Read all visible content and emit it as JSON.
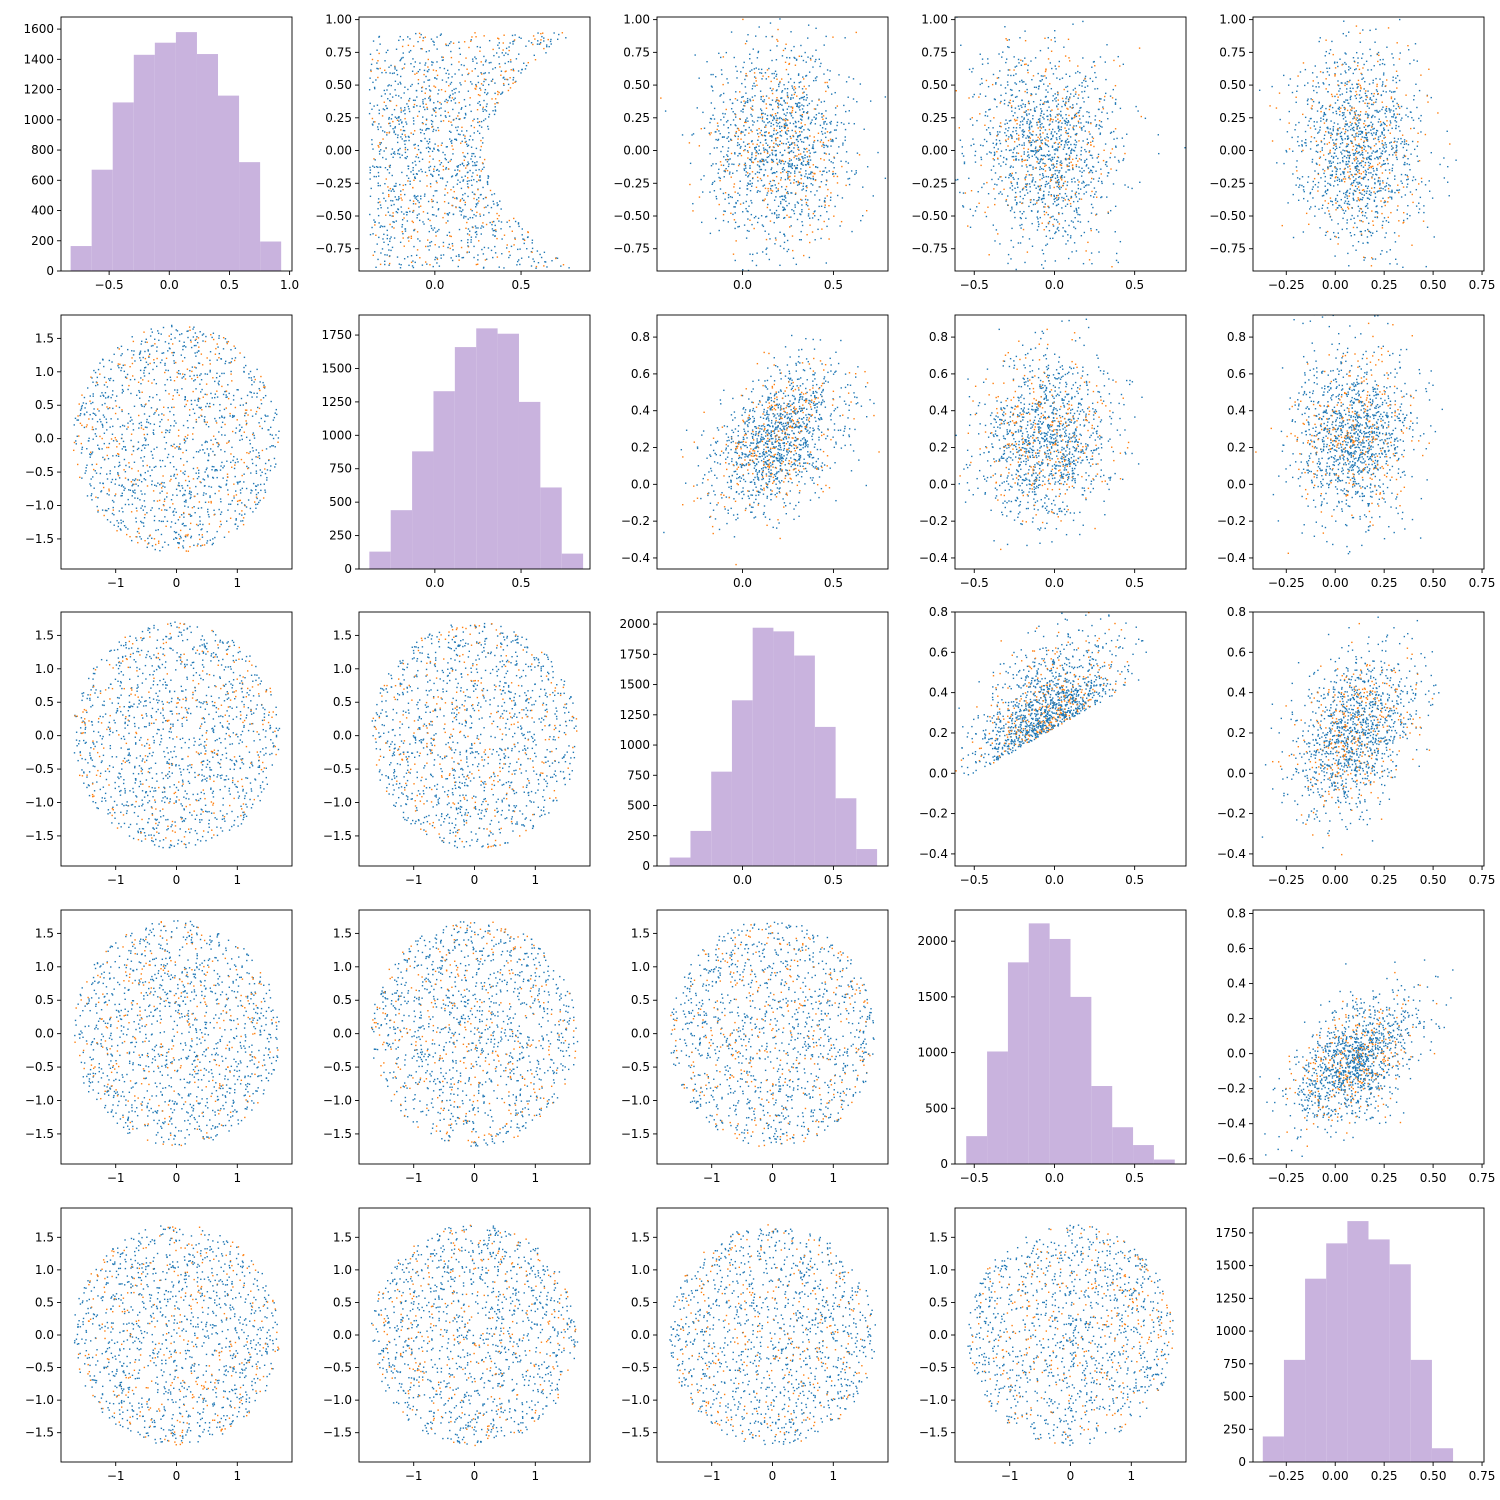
{
  "figure": {
    "type": "pair-plot",
    "colors": {
      "hist": "#c9b3de",
      "scatter_primary": "#1f77b4",
      "scatter_secondary": "#ff7f0e"
    }
  },
  "chart_data": [
    {
      "row": 0,
      "col": 0,
      "type": "bar",
      "xlim": [
        -0.9,
        1.02
      ],
      "ylim": [
        0,
        1680
      ],
      "xticks": [
        -0.5,
        0.0,
        0.5,
        1.0
      ],
      "xtick_labels": [
        "−0.5",
        "0.0",
        "0.5",
        "1.0"
      ],
      "yticks": [
        0,
        200,
        400,
        600,
        800,
        1000,
        1200,
        1400,
        1600
      ],
      "ytick_labels": [
        "0",
        "200",
        "400",
        "600",
        "800",
        "1000",
        "1200",
        "1400",
        "1600"
      ],
      "bin_edges": [
        -0.82,
        -0.645,
        -0.47,
        -0.295,
        -0.12,
        0.055,
        0.23,
        0.405,
        0.58,
        0.755,
        0.93
      ],
      "values": [
        165,
        670,
        1115,
        1430,
        1510,
        1580,
        1435,
        1160,
        720,
        195
      ]
    },
    {
      "row": 0,
      "col": 1,
      "type": "scatter",
      "shape": "parabola",
      "cx": 0.22,
      "cy": 0.0,
      "sx": 0.25,
      "sy": 0.45,
      "xlim": [
        -0.44,
        0.9
      ],
      "ylim": [
        -0.92,
        1.02
      ],
      "xticks": [
        0.0,
        0.5
      ],
      "xtick_labels": [
        "0.0",
        "0.5"
      ],
      "yticks": [
        -0.75,
        -0.5,
        -0.25,
        0.0,
        0.25,
        0.5,
        0.75,
        1.0
      ],
      "ytick_labels": [
        "−0.75",
        "−0.50",
        "−0.25",
        "0.00",
        "0.25",
        "0.50",
        "0.75",
        "1.00"
      ]
    },
    {
      "row": 0,
      "col": 2,
      "type": "scatter",
      "shape": "blob",
      "cx": 0.2,
      "cy": 0.02,
      "sx": 0.2,
      "sy": 0.38,
      "xlim": [
        -0.47,
        0.8
      ],
      "ylim": [
        -0.92,
        1.02
      ],
      "xticks": [
        0.0,
        0.5
      ],
      "xtick_labels": [
        "0.0",
        "0.5"
      ],
      "yticks": [
        -0.75,
        -0.5,
        -0.25,
        0.0,
        0.25,
        0.5,
        0.75,
        1.0
      ],
      "ytick_labels": [
        "−0.75",
        "−0.50",
        "−0.25",
        "0.00",
        "0.25",
        "0.50",
        "0.75",
        "1.00"
      ]
    },
    {
      "row": 0,
      "col": 3,
      "type": "scatter",
      "shape": "blob",
      "cx": -0.05,
      "cy": 0.02,
      "sx": 0.22,
      "sy": 0.38,
      "xlim": [
        -0.62,
        0.82
      ],
      "ylim": [
        -0.92,
        1.02
      ],
      "xticks": [
        -0.5,
        0.0,
        0.5
      ],
      "xtick_labels": [
        "−0.5",
        "0.0",
        "0.5"
      ],
      "yticks": [
        -0.75,
        -0.5,
        -0.25,
        0.0,
        0.25,
        0.5,
        0.75,
        1.0
      ],
      "ytick_labels": [
        "−0.75",
        "−0.50",
        "−0.25",
        "0.00",
        "0.25",
        "0.50",
        "0.75",
        "1.00"
      ]
    },
    {
      "row": 0,
      "col": 4,
      "type": "scatter",
      "shape": "blob",
      "cx": 0.12,
      "cy": 0.05,
      "sx": 0.16,
      "sy": 0.38,
      "xlim": [
        -0.42,
        0.76
      ],
      "ylim": [
        -0.92,
        1.02
      ],
      "xticks": [
        -0.25,
        0.0,
        0.25,
        0.5,
        0.75
      ],
      "xtick_labels": [
        "−0.25",
        "0.00",
        "0.25",
        "0.50",
        "0.75"
      ],
      "yticks": [
        -0.75,
        -0.5,
        -0.25,
        0.0,
        0.25,
        0.5,
        0.75,
        1.0
      ],
      "ytick_labels": [
        "−0.75",
        "−0.50",
        "−0.25",
        "0.00",
        "0.25",
        "0.50",
        "0.75",
        "1.00"
      ]
    },
    {
      "row": 1,
      "col": 0,
      "type": "scatter",
      "shape": "disc",
      "cx": 0.0,
      "cy": 0.0,
      "r": 1.7,
      "xlim": [
        -1.9,
        1.9
      ],
      "ylim": [
        -1.95,
        1.85
      ],
      "xticks": [
        -1,
        0,
        1
      ],
      "xtick_labels": [
        "−1",
        "0",
        "1"
      ],
      "yticks": [
        -1.5,
        -1.0,
        -0.5,
        0.0,
        0.5,
        1.0,
        1.5
      ],
      "ytick_labels": [
        "−1.5",
        "−1.0",
        "−0.5",
        "0.0",
        "0.5",
        "1.0",
        "1.5"
      ]
    },
    {
      "row": 1,
      "col": 1,
      "type": "bar",
      "xlim": [
        -0.44,
        0.9
      ],
      "ylim": [
        0,
        1900
      ],
      "xticks": [
        0.0,
        0.5
      ],
      "xtick_labels": [
        "0.0",
        "0.5"
      ],
      "yticks": [
        0,
        250,
        500,
        750,
        1000,
        1250,
        1500,
        1750
      ],
      "ytick_labels": [
        "0",
        "250",
        "500",
        "750",
        "1000",
        "1250",
        "1500",
        "1750"
      ],
      "bin_edges": [
        -0.38,
        -0.256,
        -0.132,
        -0.008,
        0.116,
        0.24,
        0.364,
        0.488,
        0.612,
        0.736,
        0.86
      ],
      "values": [
        130,
        440,
        880,
        1330,
        1660,
        1800,
        1760,
        1250,
        610,
        115
      ]
    },
    {
      "row": 1,
      "col": 2,
      "type": "scatter",
      "shape": "slope",
      "cx": 0.2,
      "cy": 0.25,
      "sx": 0.18,
      "sy": 0.2,
      "rho": 0.45,
      "xlim": [
        -0.47,
        0.8
      ],
      "ylim": [
        -0.46,
        0.92
      ],
      "xticks": [
        0.0,
        0.5
      ],
      "xtick_labels": [
        "0.0",
        "0.5"
      ],
      "yticks": [
        -0.4,
        -0.2,
        0.0,
        0.2,
        0.4,
        0.6,
        0.8
      ],
      "ytick_labels": [
        "−0.4",
        "−0.2",
        "0.0",
        "0.2",
        "0.4",
        "0.6",
        "0.8"
      ]
    },
    {
      "row": 1,
      "col": 3,
      "type": "scatter",
      "shape": "blob",
      "cx": -0.05,
      "cy": 0.25,
      "sx": 0.2,
      "sy": 0.22,
      "xlim": [
        -0.62,
        0.82
      ],
      "ylim": [
        -0.46,
        0.92
      ],
      "xticks": [
        -0.5,
        0.0,
        0.5
      ],
      "xtick_labels": [
        "−0.5",
        "0.0",
        "0.5"
      ],
      "yticks": [
        -0.4,
        -0.2,
        0.0,
        0.2,
        0.4,
        0.6,
        0.8
      ],
      "ytick_labels": [
        "−0.4",
        "−0.2",
        "0.0",
        "0.2",
        "0.4",
        "0.6",
        "0.8"
      ]
    },
    {
      "row": 1,
      "col": 4,
      "type": "scatter",
      "shape": "blob",
      "cx": 0.1,
      "cy": 0.27,
      "sx": 0.15,
      "sy": 0.22,
      "xlim": [
        -0.42,
        0.76
      ],
      "ylim": [
        -0.46,
        0.92
      ],
      "xticks": [
        -0.25,
        0.0,
        0.25,
        0.5,
        0.75
      ],
      "xtick_labels": [
        "−0.25",
        "0.00",
        "0.25",
        "0.50",
        "0.75"
      ],
      "yticks": [
        -0.4,
        -0.2,
        0.0,
        0.2,
        0.4,
        0.6,
        0.8
      ],
      "ytick_labels": [
        "−0.4",
        "−0.2",
        "0.0",
        "0.2",
        "0.4",
        "0.6",
        "0.8"
      ]
    },
    {
      "row": 2,
      "col": 0,
      "type": "scatter",
      "shape": "disc",
      "cx": 0.0,
      "cy": 0.0,
      "r": 1.7,
      "xlim": [
        -1.9,
        1.9
      ],
      "ylim": [
        -1.95,
        1.85
      ],
      "xticks": [
        -1,
        0,
        1
      ],
      "xtick_labels": [
        "−1",
        "0",
        "1"
      ],
      "yticks": [
        -1.5,
        -1.0,
        -0.5,
        0.0,
        0.5,
        1.0,
        1.5
      ],
      "ytick_labels": [
        "−1.5",
        "−1.0",
        "−0.5",
        "0.0",
        "0.5",
        "1.0",
        "1.5"
      ]
    },
    {
      "row": 2,
      "col": 1,
      "type": "scatter",
      "shape": "disc",
      "cx": 0.0,
      "cy": 0.0,
      "r": 1.7,
      "xlim": [
        -1.9,
        1.9
      ],
      "ylim": [
        -1.95,
        1.85
      ],
      "xticks": [
        -1,
        0,
        1
      ],
      "xtick_labels": [
        "−1",
        "0",
        "1"
      ],
      "yticks": [
        -1.5,
        -1.0,
        -0.5,
        0.0,
        0.5,
        1.0,
        1.5
      ],
      "ytick_labels": [
        "−1.5",
        "−1.0",
        "−0.5",
        "0.0",
        "0.5",
        "1.0",
        "1.5"
      ]
    },
    {
      "row": 2,
      "col": 2,
      "type": "bar",
      "xlim": [
        -0.47,
        0.8
      ],
      "ylim": [
        0,
        2100
      ],
      "xticks": [
        0.0,
        0.5
      ],
      "xtick_labels": [
        "0.0",
        "0.5"
      ],
      "yticks": [
        0,
        250,
        500,
        750,
        1000,
        1250,
        1500,
        1750,
        2000
      ],
      "ytick_labels": [
        "0",
        "250",
        "500",
        "750",
        "1000",
        "1250",
        "1500",
        "1750",
        "2000"
      ],
      "bin_edges": [
        -0.4,
        -0.286,
        -0.172,
        -0.058,
        0.056,
        0.17,
        0.284,
        0.398,
        0.512,
        0.626,
        0.74
      ],
      "values": [
        70,
        290,
        780,
        1370,
        1970,
        1940,
        1740,
        1150,
        560,
        140
      ]
    },
    {
      "row": 2,
      "col": 3,
      "type": "scatter",
      "shape": "wedge",
      "cx": -0.05,
      "cy": 0.2,
      "sx": 0.22,
      "sy": 0.2,
      "xlim": [
        -0.62,
        0.82
      ],
      "ylim": [
        -0.46,
        0.8
      ],
      "xticks": [
        -0.5,
        0.0,
        0.5
      ],
      "xtick_labels": [
        "−0.5",
        "0.0",
        "0.5"
      ],
      "yticks": [
        -0.4,
        -0.2,
        0.0,
        0.2,
        0.4,
        0.6,
        0.8
      ],
      "ytick_labels": [
        "−0.4",
        "−0.2",
        "0.0",
        "0.2",
        "0.4",
        "0.6",
        "0.8"
      ]
    },
    {
      "row": 2,
      "col": 4,
      "type": "scatter",
      "shape": "slope",
      "cx": 0.1,
      "cy": 0.2,
      "sx": 0.15,
      "sy": 0.19,
      "rho": 0.35,
      "xlim": [
        -0.42,
        0.76
      ],
      "ylim": [
        -0.46,
        0.8
      ],
      "xticks": [
        -0.25,
        0.0,
        0.25,
        0.5,
        0.75
      ],
      "xtick_labels": [
        "−0.25",
        "0.00",
        "0.25",
        "0.50",
        "0.75"
      ],
      "yticks": [
        -0.4,
        -0.2,
        0.0,
        0.2,
        0.4,
        0.6,
        0.8
      ],
      "ytick_labels": [
        "−0.4",
        "−0.2",
        "0.0",
        "0.2",
        "0.4",
        "0.6",
        "0.8"
      ]
    },
    {
      "row": 3,
      "col": 0,
      "type": "scatter",
      "shape": "disc",
      "cx": 0.0,
      "cy": 0.0,
      "r": 1.7,
      "xlim": [
        -1.9,
        1.9
      ],
      "ylim": [
        -1.95,
        1.85
      ],
      "xticks": [
        -1,
        0,
        1
      ],
      "xtick_labels": [
        "−1",
        "0",
        "1"
      ],
      "yticks": [
        -1.5,
        -1.0,
        -0.5,
        0.0,
        0.5,
        1.0,
        1.5
      ],
      "ytick_labels": [
        "−1.5",
        "−1.0",
        "−0.5",
        "0.0",
        "0.5",
        "1.0",
        "1.5"
      ]
    },
    {
      "row": 3,
      "col": 1,
      "type": "scatter",
      "shape": "disc",
      "cx": 0.0,
      "cy": 0.0,
      "r": 1.7,
      "xlim": [
        -1.9,
        1.9
      ],
      "ylim": [
        -1.95,
        1.85
      ],
      "xticks": [
        -1,
        0,
        1
      ],
      "xtick_labels": [
        "−1",
        "0",
        "1"
      ],
      "yticks": [
        -1.5,
        -1.0,
        -0.5,
        0.0,
        0.5,
        1.0,
        1.5
      ],
      "ytick_labels": [
        "−1.5",
        "−1.0",
        "−0.5",
        "0.0",
        "0.5",
        "1.0",
        "1.5"
      ]
    },
    {
      "row": 3,
      "col": 2,
      "type": "scatter",
      "shape": "disc",
      "cx": 0.0,
      "cy": 0.0,
      "r": 1.7,
      "xlim": [
        -1.9,
        1.9
      ],
      "ylim": [
        -1.95,
        1.85
      ],
      "xticks": [
        -1,
        0,
        1
      ],
      "xtick_labels": [
        "−1",
        "0",
        "1"
      ],
      "yticks": [
        -1.5,
        -1.0,
        -0.5,
        0.0,
        0.5,
        1.0,
        1.5
      ],
      "ytick_labels": [
        "−1.5",
        "−1.0",
        "−0.5",
        "0.0",
        "0.5",
        "1.0",
        "1.5"
      ]
    },
    {
      "row": 3,
      "col": 3,
      "type": "bar",
      "xlim": [
        -0.62,
        0.82
      ],
      "ylim": [
        0,
        2280
      ],
      "xticks": [
        -0.5,
        0.0,
        0.5
      ],
      "xtick_labels": [
        "−0.5",
        "0.0",
        "0.5"
      ],
      "yticks": [
        0,
        500,
        1000,
        1500,
        2000
      ],
      "ytick_labels": [
        "0",
        "500",
        "1000",
        "1500",
        "2000"
      ],
      "bin_edges": [
        -0.55,
        -0.42,
        -0.29,
        -0.16,
        -0.03,
        0.1,
        0.23,
        0.36,
        0.49,
        0.62,
        0.75
      ],
      "values": [
        250,
        1010,
        1810,
        2160,
        2020,
        1500,
        700,
        330,
        170,
        40
      ]
    },
    {
      "row": 3,
      "col": 4,
      "type": "scatter",
      "shape": "slope",
      "cx": 0.1,
      "cy": -0.05,
      "sx": 0.15,
      "sy": 0.18,
      "rho": 0.45,
      "xlim": [
        -0.42,
        0.76
      ],
      "ylim": [
        -0.63,
        0.82
      ],
      "xticks": [
        -0.25,
        0.0,
        0.25,
        0.5,
        0.75
      ],
      "xtick_labels": [
        "−0.25",
        "0.00",
        "0.25",
        "0.50",
        "0.75"
      ],
      "yticks": [
        -0.6,
        -0.4,
        -0.2,
        0.0,
        0.2,
        0.4,
        0.6,
        0.8
      ],
      "ytick_labels": [
        "−0.6",
        "−0.4",
        "−0.2",
        "0.0",
        "0.2",
        "0.4",
        "0.6",
        "0.8"
      ]
    },
    {
      "row": 4,
      "col": 0,
      "type": "scatter",
      "shape": "disc",
      "cx": 0.0,
      "cy": 0.0,
      "r": 1.7,
      "xlim": [
        -1.9,
        1.9
      ],
      "ylim": [
        -1.95,
        1.95
      ],
      "xticks": [
        -1,
        0,
        1
      ],
      "xtick_labels": [
        "−1",
        "0",
        "1"
      ],
      "yticks": [
        -1.5,
        -1.0,
        -0.5,
        0.0,
        0.5,
        1.0,
        1.5
      ],
      "ytick_labels": [
        "−1.5",
        "−1.0",
        "−0.5",
        "0.0",
        "0.5",
        "1.0",
        "1.5"
      ]
    },
    {
      "row": 4,
      "col": 1,
      "type": "scatter",
      "shape": "disc",
      "cx": 0.0,
      "cy": 0.0,
      "r": 1.7,
      "xlim": [
        -1.9,
        1.9
      ],
      "ylim": [
        -1.95,
        1.95
      ],
      "xticks": [
        -1,
        0,
        1
      ],
      "xtick_labels": [
        "−1",
        "0",
        "1"
      ],
      "yticks": [
        -1.5,
        -1.0,
        -0.5,
        0.0,
        0.5,
        1.0,
        1.5
      ],
      "ytick_labels": [
        "−1.5",
        "−1.0",
        "−0.5",
        "0.0",
        "0.5",
        "1.0",
        "1.5"
      ]
    },
    {
      "row": 4,
      "col": 2,
      "type": "scatter",
      "shape": "disc",
      "cx": 0.0,
      "cy": 0.0,
      "r": 1.7,
      "xlim": [
        -1.9,
        1.9
      ],
      "ylim": [
        -1.95,
        1.95
      ],
      "xticks": [
        -1,
        0,
        1
      ],
      "xtick_labels": [
        "−1",
        "0",
        "1"
      ],
      "yticks": [
        -1.5,
        -1.0,
        -0.5,
        0.0,
        0.5,
        1.0,
        1.5
      ],
      "ytick_labels": [
        "−1.5",
        "−1.0",
        "−0.5",
        "0.0",
        "0.5",
        "1.0",
        "1.5"
      ]
    },
    {
      "row": 4,
      "col": 3,
      "type": "scatter",
      "shape": "disc",
      "cx": 0.0,
      "cy": 0.0,
      "r": 1.7,
      "xlim": [
        -1.9,
        1.9
      ],
      "ylim": [
        -1.95,
        1.95
      ],
      "xticks": [
        -1,
        0,
        1
      ],
      "xtick_labels": [
        "−1",
        "0",
        "1"
      ],
      "yticks": [
        -1.5,
        -1.0,
        -0.5,
        0.0,
        0.5,
        1.0,
        1.5
      ],
      "ytick_labels": [
        "−1.5",
        "−1.0",
        "−0.5",
        "0.0",
        "0.5",
        "1.0",
        "1.5"
      ]
    },
    {
      "row": 4,
      "col": 4,
      "type": "bar",
      "xlim": [
        -0.42,
        0.76
      ],
      "ylim": [
        0,
        1940
      ],
      "xticks": [
        -0.25,
        0.0,
        0.25,
        0.5,
        0.75
      ],
      "xtick_labels": [
        "−0.25",
        "0.00",
        "0.25",
        "0.50",
        "0.75"
      ],
      "yticks": [
        0,
        250,
        500,
        750,
        1000,
        1250,
        1500,
        1750
      ],
      "ytick_labels": [
        "0",
        "250",
        "500",
        "750",
        "1000",
        "1250",
        "1500",
        "1750"
      ],
      "bin_edges": [
        -0.37,
        -0.262,
        -0.154,
        -0.046,
        0.062,
        0.17,
        0.278,
        0.386,
        0.494,
        0.602,
        0.71
      ],
      "values": [
        195,
        780,
        1400,
        1670,
        1840,
        1700,
        1510,
        780,
        105,
        0
      ]
    }
  ]
}
